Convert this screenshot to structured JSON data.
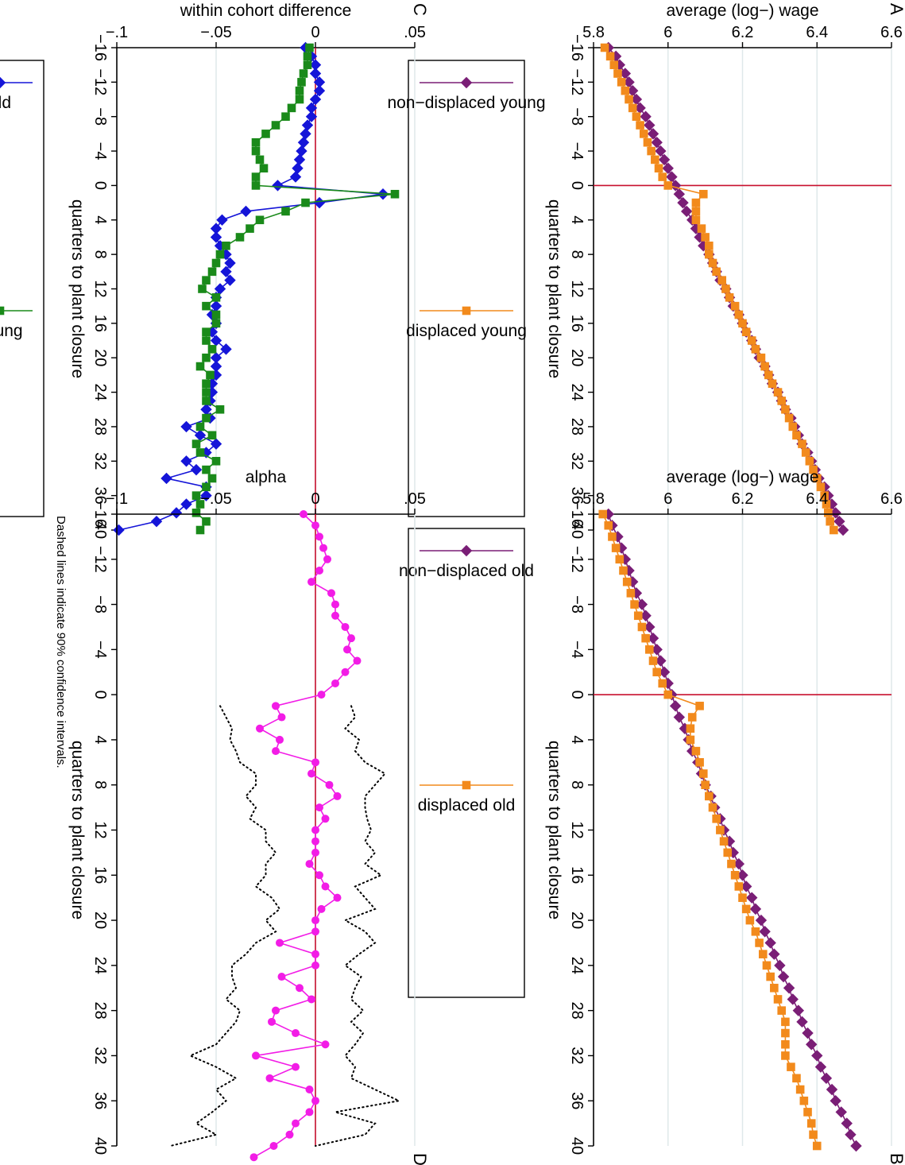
{
  "chart_data": [
    {
      "id": "A",
      "panel_label": "A",
      "type": "line",
      "xlabel": "quarters to plant closure",
      "ylabel": "average (log−) wage",
      "xlim": [
        -16,
        40
      ],
      "ylim": [
        5.8,
        6.6
      ],
      "xticks": [
        -16,
        -12,
        -8,
        -4,
        0,
        4,
        8,
        12,
        16,
        20,
        24,
        28,
        32,
        36,
        40
      ],
      "xtick_labels": [
        "−16",
        "−12",
        "−8",
        "−4",
        "0",
        "4",
        "8",
        "12",
        "16",
        "20",
        "24",
        "28",
        "32",
        "36",
        "40"
      ],
      "yticks": [
        5.8,
        6,
        6.2,
        6.4,
        6.6
      ],
      "ytick_labels": [
        "5.8",
        "6",
        "6.2",
        "6.4",
        "6.6"
      ],
      "grid": true,
      "vline": 0,
      "legend_position": "bottom",
      "series": [
        {
          "name": "non−displaced young",
          "color": "#7a1e76",
          "marker": "diamond",
          "start": -16,
          "values": [
            5.84,
            5.86,
            5.87,
            5.885,
            5.895,
            5.905,
            5.915,
            5.925,
            5.94,
            5.95,
            5.96,
            5.97,
            5.98,
            5.99,
            6.0,
            6.01,
            6.02,
            6.03,
            6.04,
            6.05,
            6.065,
            6.075,
            6.085,
            6.095,
            6.11,
            6.12,
            6.13,
            6.14,
            6.155,
            6.165,
            6.175,
            6.19,
            6.2,
            6.21,
            6.225,
            6.235,
            6.245,
            6.26,
            6.27,
            6.28,
            6.295,
            6.305,
            6.315,
            6.33,
            6.34,
            6.35,
            6.36,
            6.375,
            6.385,
            6.395,
            6.405,
            6.42,
            6.43,
            6.44,
            6.45,
            6.46,
            6.47
          ]
        },
        {
          "name": "displaced young",
          "color": "#f28a1c",
          "marker": "square",
          "start": -16,
          "values": [
            5.83,
            5.845,
            5.855,
            5.865,
            5.875,
            5.885,
            5.895,
            5.905,
            5.915,
            5.925,
            5.935,
            5.945,
            5.955,
            5.965,
            5.975,
            5.985,
            6.0,
            6.095,
            6.075,
            6.075,
            6.075,
            6.09,
            6.1,
            6.11,
            6.11,
            6.12,
            6.13,
            6.145,
            6.155,
            6.165,
            6.18,
            6.19,
            6.2,
            6.21,
            6.225,
            6.235,
            6.25,
            6.26,
            6.27,
            6.28,
            6.295,
            6.305,
            6.315,
            6.325,
            6.335,
            6.345,
            6.36,
            6.37,
            6.38,
            6.39,
            6.4,
            6.41,
            6.42,
            6.425,
            6.43,
            6.435,
            6.445
          ]
        }
      ]
    },
    {
      "id": "B",
      "panel_label": "B",
      "type": "line",
      "xlabel": "quarters to plant closure",
      "ylabel": "average (log−) wage",
      "xlim": [
        -16,
        40
      ],
      "ylim": [
        5.8,
        6.6
      ],
      "xticks": [
        -16,
        -12,
        -8,
        -4,
        0,
        4,
        8,
        12,
        16,
        20,
        24,
        28,
        32,
        36,
        40
      ],
      "xtick_labels": [
        "−16",
        "−12",
        "−8",
        "−4",
        "0",
        "4",
        "8",
        "12",
        "16",
        "20",
        "24",
        "28",
        "32",
        "36",
        "40"
      ],
      "yticks": [
        5.8,
        6,
        6.2,
        6.4,
        6.6
      ],
      "ytick_labels": [
        "5.8",
        "6",
        "6.2",
        "6.4",
        "6.6"
      ],
      "grid": true,
      "vline": 0,
      "legend_position": "bottom",
      "series": [
        {
          "name": "non−displaced old",
          "color": "#7a1e76",
          "marker": "diamond",
          "start": -16,
          "values": [
            5.84,
            5.85,
            5.865,
            5.875,
            5.885,
            5.895,
            5.905,
            5.915,
            5.93,
            5.94,
            5.95,
            5.96,
            5.97,
            5.98,
            5.99,
            6.0,
            6.01,
            6.02,
            6.03,
            6.045,
            6.055,
            6.065,
            6.08,
            6.09,
            6.1,
            6.115,
            6.125,
            6.14,
            6.15,
            6.165,
            6.175,
            6.19,
            6.2,
            6.21,
            6.225,
            6.235,
            6.25,
            6.26,
            6.275,
            6.285,
            6.3,
            6.31,
            6.325,
            6.335,
            6.35,
            6.36,
            6.375,
            6.385,
            6.4,
            6.41,
            6.425,
            6.44,
            6.45,
            6.465,
            6.48,
            6.49,
            6.505
          ]
        },
        {
          "name": "displaced old",
          "color": "#f28a1c",
          "marker": "square",
          "start": -16,
          "values": [
            5.825,
            5.84,
            5.85,
            5.86,
            5.87,
            5.88,
            5.89,
            5.9,
            5.91,
            5.92,
            5.93,
            5.94,
            5.95,
            5.96,
            5.97,
            5.985,
            6.0,
            6.085,
            6.065,
            6.06,
            6.06,
            6.075,
            6.085,
            6.095,
            6.1,
            6.11,
            6.12,
            6.13,
            6.14,
            6.15,
            6.16,
            6.17,
            6.18,
            6.19,
            6.2,
            6.21,
            6.22,
            6.235,
            6.245,
            6.255,
            6.265,
            6.275,
            6.285,
            6.295,
            6.305,
            6.315,
            6.315,
            6.315,
            6.315,
            6.33,
            6.345,
            6.355,
            6.365,
            6.375,
            6.385,
            6.39,
            6.4
          ]
        }
      ]
    },
    {
      "id": "C",
      "panel_label": "C",
      "type": "line",
      "xlabel": "quarters to plant closure",
      "ylabel": "within cohort difference",
      "xlim": [
        -16,
        40
      ],
      "ylim": [
        -0.1,
        0.05
      ],
      "xticks": [
        -16,
        -12,
        -8,
        -4,
        0,
        4,
        8,
        12,
        16,
        20,
        24,
        28,
        32,
        36,
        40
      ],
      "xtick_labels": [
        "−16",
        "−12",
        "−8",
        "−4",
        "0",
        "4",
        "8",
        "12",
        "16",
        "20",
        "24",
        "28",
        "32",
        "36",
        "40"
      ],
      "yticks": [
        -0.1,
        -0.05,
        0,
        0.05
      ],
      "ytick_labels": [
        "−.1",
        "−.05",
        "0",
        ".05"
      ],
      "grid": true,
      "hline": 0,
      "legend_position": "bottom",
      "series": [
        {
          "name": "old",
          "color": "#1515d8",
          "marker": "diamond",
          "start": -16,
          "values": [
            -0.005,
            -0.002,
            0.0,
            0.0,
            0.002,
            0.002,
            0.0,
            -0.002,
            -0.002,
            -0.004,
            -0.005,
            -0.006,
            -0.007,
            -0.008,
            -0.009,
            -0.01,
            -0.019,
            0.034,
            0.002,
            -0.035,
            -0.047,
            -0.05,
            -0.05,
            -0.048,
            -0.045,
            -0.043,
            -0.045,
            -0.043,
            -0.048,
            -0.05,
            -0.05,
            -0.052,
            -0.05,
            -0.052,
            -0.05,
            -0.045,
            -0.05,
            -0.05,
            -0.05,
            -0.052,
            -0.052,
            -0.053,
            -0.055,
            -0.053,
            -0.065,
            -0.058,
            -0.05,
            -0.055,
            -0.065,
            -0.06,
            -0.075,
            -0.055,
            -0.055,
            -0.065,
            -0.07,
            -0.08,
            -0.099
          ]
        },
        {
          "name": "young",
          "color": "#1a8a1a",
          "marker": "square",
          "start": -16,
          "values": [
            -0.003,
            -0.004,
            -0.004,
            -0.006,
            -0.007,
            -0.008,
            -0.008,
            -0.012,
            -0.015,
            -0.02,
            -0.025,
            -0.03,
            -0.03,
            -0.028,
            -0.026,
            -0.03,
            -0.03,
            0.04,
            -0.005,
            -0.015,
            -0.028,
            -0.033,
            -0.038,
            -0.045,
            -0.048,
            -0.05,
            -0.052,
            -0.055,
            -0.057,
            -0.05,
            -0.055,
            -0.05,
            -0.05,
            -0.055,
            -0.055,
            -0.052,
            -0.055,
            -0.058,
            -0.053,
            -0.055,
            -0.055,
            -0.055,
            -0.048,
            -0.055,
            -0.058,
            -0.052,
            -0.06,
            -0.058,
            -0.05,
            -0.055,
            -0.052,
            -0.055,
            -0.06,
            -0.058,
            -0.06,
            -0.055,
            -0.058
          ]
        }
      ]
    },
    {
      "id": "D",
      "panel_label": "D",
      "type": "line",
      "xlabel": "quarters to plant closure",
      "ylabel": "alpha",
      "note": "Dashed lines indicate 90% confidence intervals.",
      "xlim": [
        -16,
        40
      ],
      "ylim": [
        -0.1,
        0.05
      ],
      "xticks": [
        -16,
        -12,
        -8,
        -4,
        0,
        4,
        8,
        12,
        16,
        20,
        24,
        28,
        32,
        36,
        40
      ],
      "xtick_labels": [
        "−16",
        "−12",
        "−8",
        "−4",
        "0",
        "4",
        "8",
        "12",
        "16",
        "20",
        "24",
        "28",
        "32",
        "36",
        "40"
      ],
      "yticks": [
        -0.1,
        -0.05,
        0,
        0.05
      ],
      "ytick_labels": [
        "−.1",
        "−.05",
        "0",
        ".05"
      ],
      "grid": true,
      "hline": 0,
      "series": [
        {
          "name": "",
          "color": "#f21ce6",
          "marker": "circle",
          "start": -16,
          "values": [
            -0.006,
            0.0,
            0.002,
            0.004,
            0.006,
            0.002,
            -0.002,
            0.008,
            0.01,
            0.01,
            0.015,
            0.018,
            0.016,
            0.021,
            0.015,
            0.01,
            0.003,
            -0.02,
            -0.017,
            -0.028,
            -0.018,
            -0.02,
            0.0,
            -0.002,
            0.007,
            0.011,
            0.002,
            0.005,
            0.0,
            0.0,
            0.0,
            -0.003,
            0.002,
            0.005,
            0.011,
            0.003,
            0.0,
            0.0,
            -0.018,
            0.0,
            0.0,
            -0.017,
            -0.008,
            -0.002,
            -0.02,
            -0.022,
            -0.01,
            0.005,
            -0.03,
            -0.01,
            -0.023,
            -0.003,
            0.0,
            -0.003,
            -0.01,
            -0.013,
            -0.021,
            -0.031
          ]
        },
        {
          "name": "",
          "color": "#000000",
          "marker": "none",
          "dashed": true,
          "start": 1,
          "values": [
            0.018,
            0.02,
            0.015,
            0.022,
            0.02,
            0.025,
            0.035,
            0.03,
            0.025,
            0.025,
            0.026,
            0.028,
            0.025,
            0.03,
            0.025,
            0.033,
            0.02,
            0.025,
            0.03,
            0.015,
            0.025,
            0.03,
            0.022,
            0.015,
            0.023,
            0.02,
            0.018,
            0.024,
            0.018,
            0.024,
            0.02,
            0.015,
            0.02,
            0.018,
            0.03,
            0.042,
            0.01,
            0.03,
            0.025,
            0.0
          ]
        },
        {
          "name": "",
          "color": "#000000",
          "marker": "none",
          "dashed": true,
          "start": 1,
          "values": [
            -0.048,
            -0.045,
            -0.042,
            -0.043,
            -0.04,
            -0.038,
            -0.03,
            -0.03,
            -0.035,
            -0.03,
            -0.033,
            -0.025,
            -0.025,
            -0.02,
            -0.025,
            -0.025,
            -0.03,
            -0.022,
            -0.018,
            -0.025,
            -0.02,
            -0.03,
            -0.035,
            -0.042,
            -0.042,
            -0.04,
            -0.045,
            -0.038,
            -0.04,
            -0.045,
            -0.05,
            -0.063,
            -0.05,
            -0.04,
            -0.05,
            -0.045,
            -0.052,
            -0.06,
            -0.05,
            -0.073
          ]
        }
      ]
    }
  ]
}
